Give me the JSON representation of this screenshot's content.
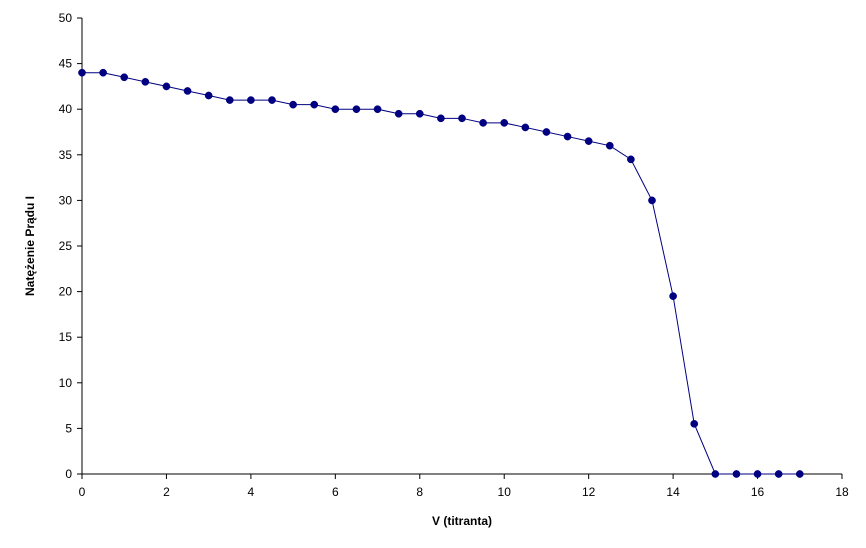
{
  "chart_data": {
    "type": "scatter",
    "title": "",
    "xlabel": "V (titranta)",
    "ylabel": "Natężenie Prądu I",
    "xlim": [
      0,
      18
    ],
    "ylim": [
      0,
      50
    ],
    "xticks": [
      "0",
      "2",
      "4",
      "6",
      "8",
      "10",
      "12",
      "14",
      "16",
      "18"
    ],
    "yticks": [
      "0",
      "5",
      "10",
      "15",
      "20",
      "25",
      "30",
      "35",
      "40",
      "45",
      "50"
    ],
    "grid": false,
    "legend": "none",
    "series_color": "#000080",
    "line_connected": true,
    "series": [
      {
        "x": [
          0,
          0.5,
          1,
          1.5,
          2,
          2.5,
          3,
          3.5,
          4,
          4.5,
          5,
          5.5,
          6,
          6.5,
          7,
          7.5,
          8,
          8.5,
          9,
          9.5,
          10,
          10.5,
          11,
          11.5,
          12,
          12.5,
          13,
          13.5,
          14,
          14.5,
          15,
          15.5,
          16,
          16.5,
          17
        ],
        "y": [
          44,
          44,
          43.5,
          43,
          42.5,
          42,
          41.5,
          41,
          41,
          41,
          40.5,
          40.5,
          40,
          40,
          40,
          39.5,
          39.5,
          39,
          39,
          38.5,
          38.5,
          38,
          37.5,
          37,
          36.5,
          36,
          34.5,
          30,
          19.5,
          5.5,
          0,
          0,
          0,
          0,
          0
        ]
      }
    ]
  }
}
